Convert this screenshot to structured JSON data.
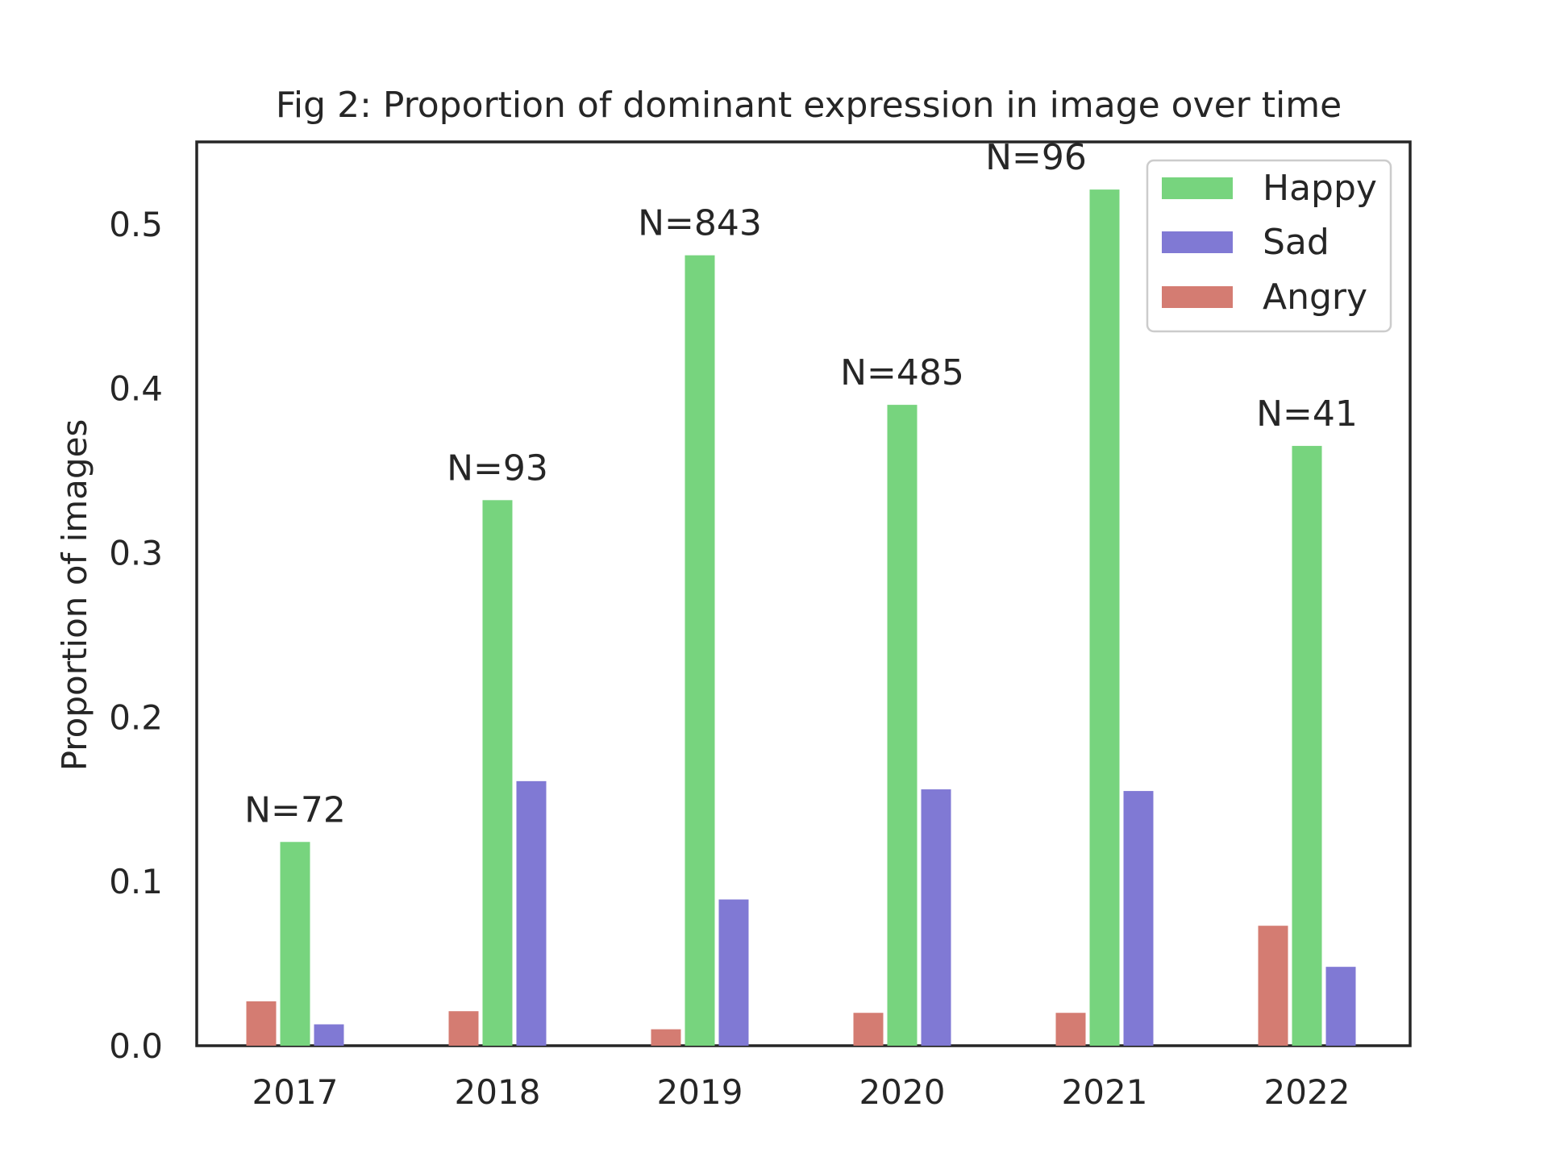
{
  "chart_data": {
    "type": "bar",
    "title": "Fig 2: Proportion of dominant expression in image over time",
    "xlabel": "",
    "ylabel": "Proportion of images",
    "categories": [
      "2017",
      "2018",
      "2019",
      "2020",
      "2021",
      "2022"
    ],
    "series": [
      {
        "name": "Angry",
        "color": "#d47c72",
        "values": [
          0.027,
          0.021,
          0.01,
          0.02,
          0.02,
          0.073
        ]
      },
      {
        "name": "Happy",
        "color": "#77d47e",
        "values": [
          0.124,
          0.332,
          0.481,
          0.39,
          0.521,
          0.365
        ]
      },
      {
        "name": "Sad",
        "color": "#8079d4",
        "values": [
          0.013,
          0.161,
          0.089,
          0.156,
          0.155,
          0.048
        ]
      }
    ],
    "annotations": [
      "N=72",
      "N=93",
      "N=843",
      "N=485",
      "N=96",
      "N=41"
    ],
    "legend_order": [
      "Happy",
      "Sad",
      "Angry"
    ],
    "legend_position": "top-right",
    "ylim": [
      0,
      0.55
    ],
    "yticks": [
      "0.0",
      "0.1",
      "0.2",
      "0.3",
      "0.4",
      "0.5"
    ],
    "grid": false
  }
}
